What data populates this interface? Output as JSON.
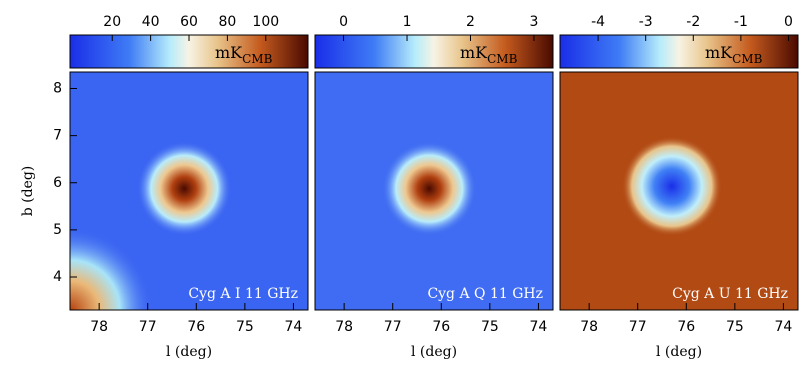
{
  "chart_data": [
    {
      "type": "image",
      "title": "Cyg A I 11 GHz",
      "colorbar_label": "mK",
      "colorbar_label_sub": "CMB",
      "clim": [
        -2,
        122
      ],
      "cticks": [
        20,
        40,
        60,
        80,
        100
      ],
      "xlabel": "l (deg)",
      "xlim": [
        78.6,
        73.7
      ],
      "xticks": [
        78,
        77,
        76,
        75,
        74
      ],
      "ylabel": "b (deg)",
      "ylim": [
        3.3,
        8.35
      ],
      "yticks": [
        4,
        5,
        6,
        7,
        8
      ]
    },
    {
      "type": "image",
      "title": "Cyg A Q 11 GHz",
      "colorbar_label": "mK",
      "colorbar_label_sub": "CMB",
      "clim": [
        -0.45,
        3.3
      ],
      "cticks": [
        0,
        1,
        2,
        3
      ],
      "xlabel": "l (deg)",
      "xlim": [
        78.6,
        73.7
      ],
      "xticks": [
        78,
        77,
        76,
        75,
        74
      ],
      "ylim": [
        3.3,
        8.35
      ]
    },
    {
      "type": "image",
      "title": "Cyg A U 11 GHz",
      "colorbar_label": "mK",
      "colorbar_label_sub": "CMB",
      "clim": [
        -4.8,
        0.2
      ],
      "cticks": [
        -4,
        -3,
        -2,
        -1,
        0
      ],
      "xlabel": "l (deg)",
      "xlim": [
        78.6,
        73.7
      ],
      "xticks": [
        78,
        77,
        76,
        75,
        74
      ],
      "ylim": [
        3.3,
        8.35
      ]
    }
  ]
}
